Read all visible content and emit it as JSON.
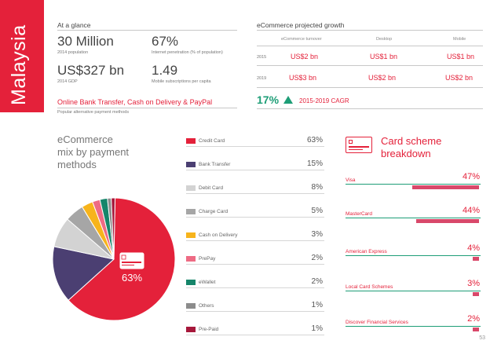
{
  "country": "Malaysia",
  "glance": {
    "heading": "At a glance",
    "population_value": "30 Million",
    "population_label": "2014 population",
    "internet_value": "67%",
    "internet_label": "Internet penetration (% of population)",
    "gdp_value": "US$327 bn",
    "gdp_label": "2014 GDP",
    "mobile_value": "1.49",
    "mobile_label": "Mobile subscriptions per capita",
    "alt_methods_value": "Online Bank Transfer, Cash on Delivery & PayPal",
    "alt_methods_label": "Popular alternative payment methods"
  },
  "growth": {
    "heading": "eCommerce projected growth",
    "col_turnover": "eCommerce turnover",
    "col_desktop": "Desktop",
    "col_mobile": "Mobile",
    "rows": [
      {
        "year": "2015",
        "turnover": "US$2 bn",
        "desktop": "US$1 bn",
        "mobile": "US$1 bn"
      },
      {
        "year": "2019",
        "turnover": "US$3 bn",
        "desktop": "US$2 bn",
        "mobile": "US$2 bn"
      }
    ],
    "cagr_value": "17%",
    "cagr_label": "2015-2019 CAGR"
  },
  "mix": {
    "title_line1": "eCommerce",
    "title_line2": "mix by payment",
    "title_line3": "methods",
    "center_label": "63%"
  },
  "chart_data": {
    "type": "pie",
    "title": "eCommerce mix by payment methods",
    "categories": [
      "Credit Card",
      "Bank Transfer",
      "Debit Card",
      "Charge Card",
      "Cash on Delivery",
      "PrePay",
      "eWallet",
      "Others",
      "Pre-Paid"
    ],
    "values": [
      63,
      15,
      8,
      5,
      3,
      2,
      2,
      1,
      1
    ],
    "labels": [
      "63%",
      "15%",
      "8%",
      "5%",
      "3%",
      "2%",
      "2%",
      "1%",
      "1%"
    ],
    "colors": [
      "#e4213a",
      "#4b3f72",
      "#d3d3d3",
      "#a6a6a6",
      "#f7b41c",
      "#ee6b84",
      "#16856a",
      "#8c8c8c",
      "#a6183b"
    ]
  },
  "schemes": {
    "title_line1": "Card scheme",
    "title_line2": "breakdown",
    "items": [
      {
        "name": "Visa",
        "pct": 47,
        "label": "47%"
      },
      {
        "name": "MasterCard",
        "pct": 44,
        "label": "44%"
      },
      {
        "name": "American Express",
        "pct": 4,
        "label": "4%"
      },
      {
        "name": "Local Card Schemes",
        "pct": 3,
        "label": "3%"
      },
      {
        "name": "Discover Financial Services",
        "pct": 2,
        "label": "2%"
      }
    ]
  },
  "page_number": "53",
  "colors": {
    "brand_red": "#e4213a",
    "accent_green": "#1e9e77",
    "bar_pink": "#d9486a"
  }
}
